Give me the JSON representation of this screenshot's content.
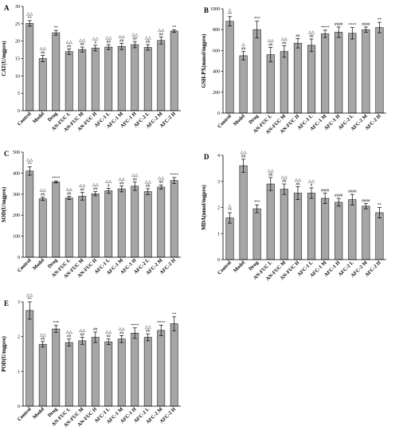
{
  "figure": {
    "panels": [
      {
        "letter": "A",
        "ylabel": "CAT(U/mgpro)"
      },
      {
        "letter": "B",
        "ylabel": "GSH-PX(mmol/mgpro)"
      },
      {
        "letter": "C",
        "ylabel": "SOD(U/mgpro)"
      },
      {
        "letter": "D",
        "ylabel": "MDA(nmol/mgpro)"
      },
      {
        "letter": "E",
        "ylabel": "POD(U/mgpro)"
      }
    ]
  },
  "chart_data": [
    {
      "type": "bar",
      "title": "A",
      "xlabel": "",
      "ylabel": "CAT(U/mgpro)",
      "categories": [
        "Control",
        "Model",
        "Drug",
        "AN-FUC L",
        "AN-FUC M",
        "AN-FUC H",
        "AFC-1 L",
        "AFC-1 M",
        "AFC-1 H",
        "AFC-2 L",
        "AFC-2 M",
        "AFC-2 H"
      ],
      "values": [
        25.1,
        15.0,
        22.4,
        17.0,
        17.6,
        18.0,
        18.3,
        18.5,
        19.0,
        18.2,
        20.2,
        22.9
      ],
      "errors": [
        0.8,
        0.9,
        0.7,
        0.8,
        0.7,
        0.8,
        0.7,
        0.9,
        0.9,
        0.8,
        1.0,
        0.4
      ],
      "annotations": [
        "△△\n**",
        "△△\n##",
        "**",
        "△△\n##",
        "△△\n##",
        "△△\n#",
        "△△\n##",
        "△△\n##",
        "△△\n##",
        "△△\n##",
        "△△\n##",
        "**"
      ],
      "ylim": [
        0,
        30
      ],
      "yticks": [
        0,
        5,
        10,
        15,
        20,
        25,
        30
      ],
      "bar_color": "#a6a6a6",
      "grid": false
    },
    {
      "type": "bar",
      "title": "B",
      "xlabel": "",
      "ylabel": "GSH-PX(mmol/mgpro)",
      "categories": [
        "Control",
        "Model",
        "Drug",
        "AN-FUC L",
        "AN-FUC M",
        "AN-FUC H",
        "AFC-1 L",
        "AFC-1 M",
        "AFC-1 H",
        "AFC-2 L",
        "AFC-2 M",
        "AFC-2 H"
      ],
      "values": [
        880,
        550,
        800,
        560,
        590,
        670,
        650,
        760,
        775,
        765,
        800,
        820
      ],
      "errors": [
        45,
        40,
        80,
        70,
        55,
        45,
        60,
        35,
        50,
        55,
        25,
        50
      ],
      "annotations": [
        "△\n**",
        "△\n##",
        "***",
        "△△\n##",
        "△△\n##",
        "##",
        "△△\n##",
        "****",
        "####",
        "****",
        "####",
        "**"
      ],
      "ylim": [
        0,
        1000
      ],
      "yticks": [
        0,
        200,
        400,
        600,
        800,
        1000
      ],
      "bar_color": "#a6a6a6",
      "grid": false
    },
    {
      "type": "bar",
      "title": "C",
      "xlabel": "",
      "ylabel": "SOD(U/mgpro)",
      "categories": [
        "Control",
        "Model",
        "Drug",
        "AN-FUC L",
        "AN-FUC M",
        "AN-FUC H",
        "AFC-1 L",
        "AFC-1 M",
        "AFC-1 H",
        "AFC-2 L",
        "AFC-2 M",
        "AFC-2 H"
      ],
      "values": [
        410,
        278,
        358,
        282,
        290,
        302,
        316,
        325,
        338,
        312,
        334,
        365
      ],
      "errors": [
        20,
        8,
        5,
        8,
        18,
        10,
        12,
        14,
        20,
        14,
        10,
        14
      ],
      "annotations": [
        "△△\n**",
        "△△\n##",
        "****",
        "△△\n##",
        "△△\n##",
        "△△\n##",
        "△△\n#",
        "△△\n##",
        "△△\n##",
        "△△\n##",
        "△△\n##",
        "****"
      ],
      "ylim": [
        0,
        500
      ],
      "yticks": [
        0,
        100,
        200,
        300,
        400,
        500
      ],
      "bar_color": "#a6a6a6",
      "grid": false
    },
    {
      "type": "bar",
      "title": "D",
      "xlabel": "",
      "ylabel": "MDA(nmol/mgpro)",
      "categories": [
        "Control",
        "Model",
        "Drug",
        "AN-FUC L",
        "AN-FUC M",
        "AN-FUC H",
        "AFC-1 L",
        "AFC-1 M",
        "AFC-1 H",
        "AFC-2 L",
        "AFC-2 M",
        "AFC-2 H"
      ],
      "values": [
        1.6,
        3.6,
        1.95,
        2.9,
        2.7,
        2.55,
        2.55,
        2.35,
        2.2,
        2.3,
        2.05,
        1.8
      ],
      "errors": [
        0.2,
        0.25,
        0.15,
        0.25,
        0.2,
        0.25,
        0.2,
        0.2,
        0.15,
        0.2,
        0.1,
        0.2
      ],
      "annotations": [
        "△\n**",
        "△△\n##",
        "***",
        "△△\n##",
        "△△\n##",
        "△△\n##",
        "△△\n#",
        "####",
        "####",
        "####",
        "####",
        "**"
      ],
      "ylim": [
        0,
        4
      ],
      "yticks": [
        0,
        1,
        2,
        3,
        4
      ],
      "bar_color": "#a6a6a6",
      "grid": false
    },
    {
      "type": "bar",
      "title": "E",
      "xlabel": "",
      "ylabel": "POD(U/mgpro)",
      "categories": [
        "Control",
        "Model",
        "Drug",
        "AN-FUC L",
        "AN-FUC M",
        "AN-FUC H",
        "AFC-1 L",
        "AFC-1 M",
        "AFC-1 H",
        "AFC-2 L",
        "AFC-2 M",
        "AFC-2 H"
      ],
      "values": [
        2.75,
        1.78,
        2.22,
        1.83,
        1.88,
        1.98,
        1.85,
        1.93,
        2.1,
        1.98,
        2.18,
        2.37
      ],
      "errors": [
        0.25,
        0.08,
        0.1,
        0.1,
        0.1,
        0.15,
        0.08,
        0.1,
        0.15,
        0.1,
        0.15,
        0.2
      ],
      "annotations": [
        "△△\n**",
        "△△\n##",
        "***",
        "△△\n##",
        "△△\n##",
        "##",
        "△△\n##",
        "△△\n##",
        "****",
        "△△\n##",
        "****",
        "**"
      ],
      "ylim": [
        0,
        3
      ],
      "yticks": [
        0,
        1,
        2,
        3
      ],
      "bar_color": "#a6a6a6",
      "grid": false
    }
  ]
}
